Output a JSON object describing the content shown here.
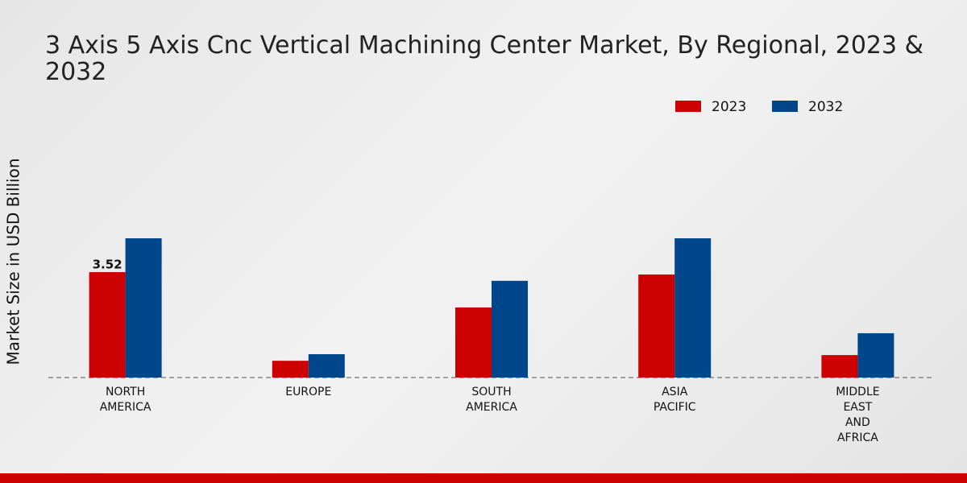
{
  "chart_data": {
    "type": "bar",
    "title": "3 Axis 5 Axis Cnc Vertical Machining Center Market, By Regional, 2023 & 2032",
    "y_label": "Market Size in USD Billion",
    "categories": [
      "NORTH AMERICA",
      "EUROPE",
      "SOUTH AMERICA",
      "ASIA PACIFIC",
      "MIDDLE EAST AND AFRICA"
    ],
    "series": [
      {
        "name": "2023",
        "color": "#cc0000",
        "values": [
          3.52,
          0.56,
          2.34,
          3.44,
          0.75
        ],
        "value_labels": [
          "3.52",
          null,
          null,
          null,
          null
        ]
      },
      {
        "name": "2032",
        "color": "#00468b",
        "values": [
          4.65,
          0.78,
          3.23,
          4.65,
          1.48
        ]
      }
    ],
    "legend": "top-right"
  }
}
